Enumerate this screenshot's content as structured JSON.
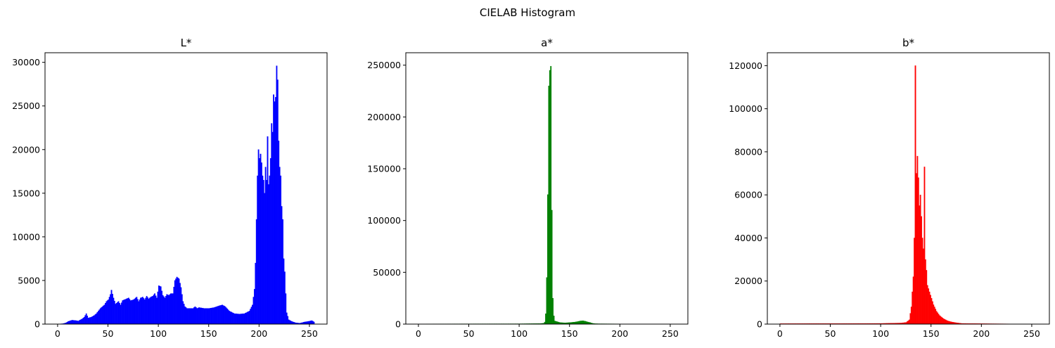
{
  "figure": {
    "title": "CIELAB Histogram"
  },
  "chart_data": [
    {
      "type": "histogram",
      "title": "L*",
      "color": "#0000ff",
      "xlim": [
        -12.5,
        267.5
      ],
      "ylim": [
        0,
        31100
      ],
      "xticks": [
        0,
        50,
        100,
        150,
        200,
        250
      ],
      "yticks": [
        0,
        5000,
        10000,
        15000,
        20000,
        25000,
        30000
      ],
      "bins": 256,
      "points": [
        [
          0,
          0
        ],
        [
          5,
          50
        ],
        [
          8,
          150
        ],
        [
          10,
          300
        ],
        [
          14,
          450
        ],
        [
          18,
          400
        ],
        [
          20,
          350
        ],
        [
          24,
          600
        ],
        [
          26,
          800
        ],
        [
          28,
          1200
        ],
        [
          30,
          700
        ],
        [
          33,
          800
        ],
        [
          36,
          1000
        ],
        [
          38,
          1200
        ],
        [
          40,
          1500
        ],
        [
          42,
          1800
        ],
        [
          44,
          2000
        ],
        [
          46,
          2200
        ],
        [
          48,
          2600
        ],
        [
          50,
          2800
        ],
        [
          52,
          3400
        ],
        [
          53,
          3900
        ],
        [
          55,
          3000
        ],
        [
          57,
          2300
        ],
        [
          60,
          2600
        ],
        [
          62,
          2200
        ],
        [
          64,
          2700
        ],
        [
          66,
          2800
        ],
        [
          68,
          2900
        ],
        [
          70,
          3000
        ],
        [
          72,
          2700
        ],
        [
          75,
          2800
        ],
        [
          78,
          3100
        ],
        [
          80,
          2600
        ],
        [
          82,
          3000
        ],
        [
          84,
          3100
        ],
        [
          86,
          2800
        ],
        [
          88,
          3200
        ],
        [
          90,
          2900
        ],
        [
          92,
          3100
        ],
        [
          94,
          3200
        ],
        [
          96,
          3500
        ],
        [
          98,
          3000
        ],
        [
          100,
          4400
        ],
        [
          102,
          4300
        ],
        [
          104,
          3300
        ],
        [
          106,
          3000
        ],
        [
          108,
          3400
        ],
        [
          110,
          3300
        ],
        [
          112,
          3500
        ],
        [
          114,
          3500
        ],
        [
          116,
          5000
        ],
        [
          118,
          5400
        ],
        [
          120,
          5200
        ],
        [
          122,
          4200
        ],
        [
          124,
          2600
        ],
        [
          126,
          2000
        ],
        [
          128,
          1800
        ],
        [
          130,
          1800
        ],
        [
          134,
          1800
        ],
        [
          136,
          2000
        ],
        [
          138,
          1800
        ],
        [
          140,
          1900
        ],
        [
          145,
          1800
        ],
        [
          150,
          1800
        ],
        [
          155,
          1900
        ],
        [
          160,
          2100
        ],
        [
          163,
          2200
        ],
        [
          166,
          2000
        ],
        [
          170,
          1500
        ],
        [
          175,
          1200
        ],
        [
          180,
          1150
        ],
        [
          185,
          1200
        ],
        [
          190,
          1500
        ],
        [
          193,
          2200
        ],
        [
          195,
          4000
        ],
        [
          196,
          7000
        ],
        [
          197,
          12000
        ],
        [
          198,
          17000
        ],
        [
          199,
          20000
        ],
        [
          200,
          19000
        ],
        [
          201,
          19500
        ],
        [
          202,
          18500
        ],
        [
          203,
          17000
        ],
        [
          204,
          16500
        ],
        [
          205,
          15000
        ],
        [
          206,
          18000
        ],
        [
          207,
          16500
        ],
        [
          208,
          21500
        ],
        [
          209,
          16000
        ],
        [
          210,
          17000
        ],
        [
          211,
          19000
        ],
        [
          212,
          23000
        ],
        [
          213,
          22000
        ],
        [
          214,
          26300
        ],
        [
          215,
          25500
        ],
        [
          216,
          26000
        ],
        [
          217,
          29600
        ],
        [
          218,
          28000
        ],
        [
          219,
          21000
        ],
        [
          220,
          18000
        ],
        [
          221,
          17000
        ],
        [
          222,
          13500
        ],
        [
          223,
          12000
        ],
        [
          224,
          7500
        ],
        [
          225,
          6000
        ],
        [
          226,
          3500
        ],
        [
          227,
          1300
        ],
        [
          229,
          500
        ],
        [
          232,
          300
        ],
        [
          236,
          150
        ],
        [
          240,
          100
        ],
        [
          245,
          250
        ],
        [
          248,
          300
        ],
        [
          250,
          350
        ],
        [
          252,
          400
        ],
        [
          254,
          250
        ],
        [
          255,
          0
        ]
      ]
    },
    {
      "type": "histogram",
      "title": "a*",
      "color": "#008000",
      "xlim": [
        -12.5,
        267.5
      ],
      "ylim": [
        0,
        262000
      ],
      "xticks": [
        0,
        50,
        100,
        150,
        200,
        250
      ],
      "yticks": [
        0,
        50000,
        100000,
        150000,
        200000,
        250000
      ],
      "bins": 256,
      "points": [
        [
          0,
          200
        ],
        [
          50,
          250
        ],
        [
          100,
          300
        ],
        [
          110,
          400
        ],
        [
          120,
          500
        ],
        [
          124,
          800
        ],
        [
          125,
          2000
        ],
        [
          126,
          10000
        ],
        [
          127,
          45000
        ],
        [
          128,
          125000
        ],
        [
          129,
          230000
        ],
        [
          130,
          245000
        ],
        [
          131,
          249000
        ],
        [
          132,
          110000
        ],
        [
          133,
          25000
        ],
        [
          134,
          8000
        ],
        [
          135,
          3000
        ],
        [
          140,
          1500
        ],
        [
          145,
          1200
        ],
        [
          150,
          1500
        ],
        [
          155,
          2000
        ],
        [
          158,
          2500
        ],
        [
          160,
          3000
        ],
        [
          163,
          3200
        ],
        [
          165,
          2800
        ],
        [
          167,
          2200
        ],
        [
          170,
          1500
        ],
        [
          172,
          800
        ],
        [
          175,
          400
        ],
        [
          180,
          300
        ],
        [
          200,
          200
        ],
        [
          255,
          0
        ]
      ]
    },
    {
      "type": "histogram",
      "title": "b*",
      "color": "#ff0000",
      "xlim": [
        -12.5,
        267.5
      ],
      "ylim": [
        0,
        126000
      ],
      "xticks": [
        0,
        50,
        100,
        150,
        200,
        250
      ],
      "yticks": [
        0,
        20000,
        40000,
        60000,
        80000,
        100000,
        120000
      ],
      "bins": 256,
      "points": [
        [
          0,
          200
        ],
        [
          50,
          250
        ],
        [
          100,
          300
        ],
        [
          120,
          500
        ],
        [
          125,
          800
        ],
        [
          128,
          2000
        ],
        [
          130,
          8000
        ],
        [
          132,
          22000
        ],
        [
          133,
          40000
        ],
        [
          134,
          120000
        ],
        [
          135,
          70000
        ],
        [
          136,
          78000
        ],
        [
          137,
          68000
        ],
        [
          138,
          55000
        ],
        [
          139,
          60000
        ],
        [
          140,
          50000
        ],
        [
          141,
          40000
        ],
        [
          142,
          35000
        ],
        [
          143,
          73000
        ],
        [
          144,
          30000
        ],
        [
          145,
          25000
        ],
        [
          146,
          18000
        ],
        [
          148,
          15000
        ],
        [
          150,
          12000
        ],
        [
          152,
          9000
        ],
        [
          155,
          6000
        ],
        [
          158,
          4000
        ],
        [
          162,
          2500
        ],
        [
          166,
          1500
        ],
        [
          170,
          1000
        ],
        [
          175,
          600
        ],
        [
          180,
          300
        ],
        [
          200,
          200
        ],
        [
          255,
          0
        ]
      ]
    }
  ]
}
